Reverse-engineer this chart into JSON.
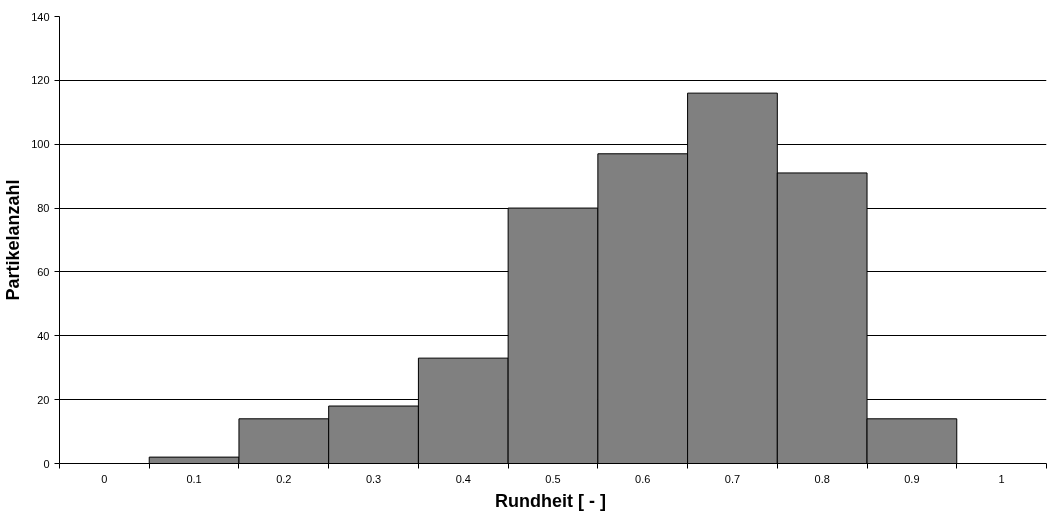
{
  "chart_data": {
    "type": "bar",
    "xlabel": "Rundheit  [ - ]",
    "ylabel": "Partikelanzahl",
    "categories": [
      "0",
      "0.1",
      "0.2",
      "0.3",
      "0.4",
      "0.5",
      "0.6",
      "0.7",
      "0.8",
      "0.9",
      "1"
    ],
    "values": [
      0,
      2,
      14,
      18,
      33,
      80,
      97,
      116,
      91,
      14,
      0
    ],
    "color": "#808080",
    "ylim": [
      0,
      140
    ],
    "yticks": [
      0,
      20,
      40,
      60,
      80,
      100,
      120,
      140
    ],
    "grid": "y"
  }
}
